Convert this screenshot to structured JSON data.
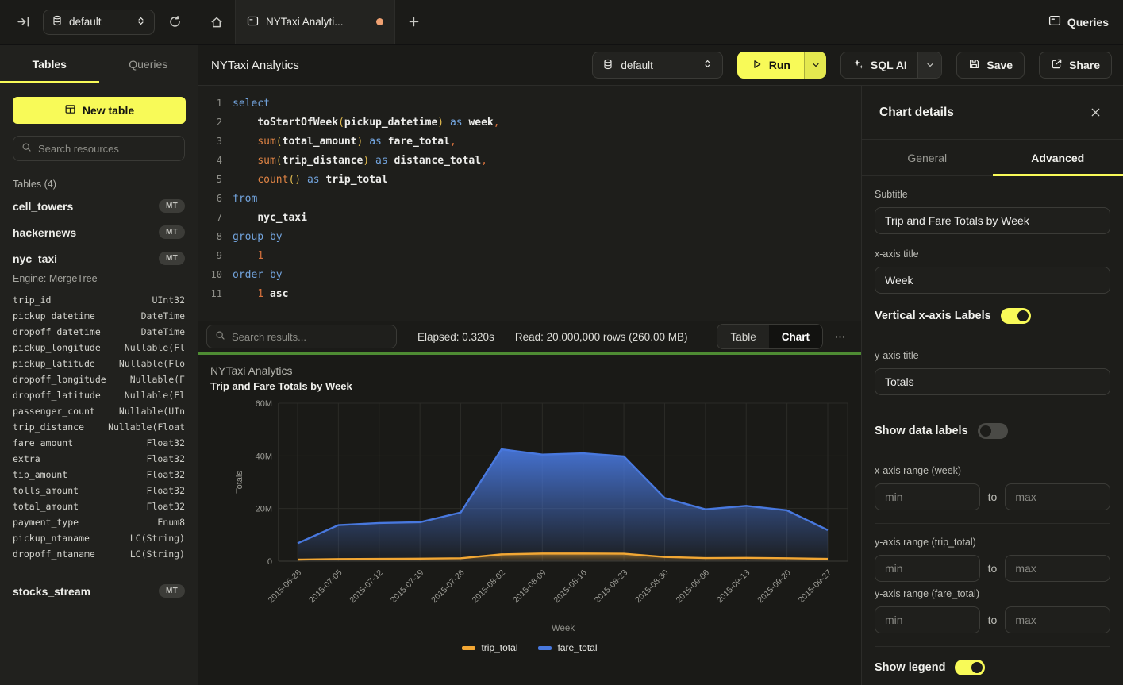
{
  "topbar": {
    "database_selector": "default",
    "tab_title": "NYTaxi Analyti...",
    "queries_label": "Queries"
  },
  "sidebar": {
    "tabs": [
      "Tables",
      "Queries"
    ],
    "active_tab": "Tables",
    "new_table_label": "New table",
    "search_placeholder": "Search resources",
    "section_label": "Tables (4)",
    "tables": [
      {
        "name": "cell_towers",
        "badge": "MT"
      },
      {
        "name": "hackernews",
        "badge": "MT"
      },
      {
        "name": "nyc_taxi",
        "badge": "MT",
        "engine": "Engine: MergeTree",
        "columns": [
          {
            "name": "trip_id",
            "type": "UInt32"
          },
          {
            "name": "pickup_datetime",
            "type": "DateTime"
          },
          {
            "name": "dropoff_datetime",
            "type": "DateTime"
          },
          {
            "name": "pickup_longitude",
            "type": "Nullable(Fl"
          },
          {
            "name": "pickup_latitude",
            "type": "Nullable(Flo"
          },
          {
            "name": "dropoff_longitude",
            "type": "Nullable(F"
          },
          {
            "name": "dropoff_latitude",
            "type": "Nullable(Fl"
          },
          {
            "name": "passenger_count",
            "type": "Nullable(UIn"
          },
          {
            "name": "trip_distance",
            "type": "Nullable(Float"
          },
          {
            "name": "fare_amount",
            "type": "Float32"
          },
          {
            "name": "extra",
            "type": "Float32"
          },
          {
            "name": "tip_amount",
            "type": "Float32"
          },
          {
            "name": "tolls_amount",
            "type": "Float32"
          },
          {
            "name": "total_amount",
            "type": "Float32"
          },
          {
            "name": "payment_type",
            "type": "Enum8"
          },
          {
            "name": "pickup_ntaname",
            "type": "LC(String)"
          },
          {
            "name": "dropoff_ntaname",
            "type": "LC(String)"
          }
        ]
      },
      {
        "name": "stocks_stream",
        "badge": "MT"
      }
    ]
  },
  "query_header": {
    "title": "NYTaxi Analytics",
    "database_selector": "default",
    "run_label": "Run",
    "sql_ai_label": "SQL AI",
    "save_label": "Save",
    "share_label": "Share"
  },
  "editor": {
    "lines": [
      {
        "n": "1",
        "tokens": [
          [
            "kw",
            "select"
          ]
        ]
      },
      {
        "n": "2",
        "tokens": [
          [
            "ws",
            "    "
          ],
          [
            "fnw",
            "toStartOfWeek"
          ],
          [
            "paren",
            "("
          ],
          [
            "id",
            "pickup_datetime"
          ],
          [
            "paren",
            ")"
          ],
          [
            "pl",
            " "
          ],
          [
            "kw",
            "as"
          ],
          [
            "pl",
            " "
          ],
          [
            "id",
            "week"
          ],
          [
            "comma",
            ","
          ]
        ]
      },
      {
        "n": "3",
        "tokens": [
          [
            "ws",
            "    "
          ],
          [
            "fn",
            "sum"
          ],
          [
            "paren",
            "("
          ],
          [
            "id",
            "total_amount"
          ],
          [
            "paren",
            ")"
          ],
          [
            "pl",
            " "
          ],
          [
            "kw",
            "as"
          ],
          [
            "pl",
            " "
          ],
          [
            "id",
            "fare_total"
          ],
          [
            "comma",
            ","
          ]
        ]
      },
      {
        "n": "4",
        "tokens": [
          [
            "ws",
            "    "
          ],
          [
            "fn",
            "sum"
          ],
          [
            "paren",
            "("
          ],
          [
            "id",
            "trip_distance"
          ],
          [
            "paren",
            ")"
          ],
          [
            "pl",
            " "
          ],
          [
            "kw",
            "as"
          ],
          [
            "pl",
            " "
          ],
          [
            "id",
            "distance_total"
          ],
          [
            "comma",
            ","
          ]
        ]
      },
      {
        "n": "5",
        "tokens": [
          [
            "ws",
            "    "
          ],
          [
            "fn",
            "count"
          ],
          [
            "paren",
            "()"
          ],
          [
            "pl",
            " "
          ],
          [
            "kw",
            "as"
          ],
          [
            "pl",
            " "
          ],
          [
            "id",
            "trip_total"
          ]
        ]
      },
      {
        "n": "6",
        "tokens": [
          [
            "kw",
            "from"
          ]
        ]
      },
      {
        "n": "7",
        "tokens": [
          [
            "ws",
            "    "
          ],
          [
            "id",
            "nyc_taxi"
          ]
        ]
      },
      {
        "n": "8",
        "tokens": [
          [
            "kw",
            "group by"
          ]
        ]
      },
      {
        "n": "9",
        "tokens": [
          [
            "ws",
            "    "
          ],
          [
            "num",
            "1"
          ]
        ]
      },
      {
        "n": "10",
        "tokens": [
          [
            "kw",
            "order by"
          ]
        ]
      },
      {
        "n": "11",
        "tokens": [
          [
            "ws",
            "    "
          ],
          [
            "num",
            "1"
          ],
          [
            "pl",
            " "
          ],
          [
            "id",
            "asc"
          ]
        ]
      }
    ]
  },
  "results_bar": {
    "search_placeholder": "Search results...",
    "elapsed": "Elapsed: 0.320s",
    "read": "Read: 20,000,000 rows (260.00 MB)",
    "view_toggle": [
      "Table",
      "Chart"
    ],
    "active_view": "Chart"
  },
  "chart_data": {
    "type": "area",
    "title": "NYTaxi Analytics",
    "subtitle": "Trip and Fare Totals by Week",
    "xlabel": "Week",
    "ylabel": "Totals",
    "ylim": [
      0,
      60000000
    ],
    "grid": true,
    "legend_position": "bottom",
    "x": [
      "2015-06-28",
      "2015-07-05",
      "2015-07-12",
      "2015-07-19",
      "2015-07-26",
      "2015-08-02",
      "2015-08-09",
      "2015-08-16",
      "2015-08-23",
      "2015-08-30",
      "2015-09-06",
      "2015-09-13",
      "2015-09-20",
      "2015-09-27"
    ],
    "y_ticks": [
      {
        "label": "0",
        "value": 0
      },
      {
        "label": "20M",
        "value": 20000000
      },
      {
        "label": "40M",
        "value": 40000000
      },
      {
        "label": "60M",
        "value": 60000000
      }
    ],
    "series": [
      {
        "name": "trip_total",
        "color": "#F2A734",
        "values": [
          600000,
          800000,
          900000,
          950000,
          1100000,
          2600000,
          2900000,
          2900000,
          2850000,
          1600000,
          1200000,
          1250000,
          1100000,
          900000
        ]
      },
      {
        "name": "fare_total",
        "color": "#4878DE",
        "values": [
          6800000,
          13700000,
          14500000,
          14800000,
          18500000,
          42500000,
          40500000,
          41000000,
          39800000,
          24000000,
          19700000,
          21000000,
          19300000,
          11800000
        ]
      }
    ]
  },
  "chart_panel": {
    "title": "Chart details",
    "tabs": [
      "General",
      "Advanced"
    ],
    "active_tab": "Advanced",
    "fields": {
      "subtitle": {
        "label": "Subtitle",
        "value": "Trip and Fare Totals by Week"
      },
      "x_axis_title": {
        "label": "x-axis title",
        "value": "Week"
      },
      "vertical_x_labels": {
        "label": "Vertical x-axis Labels",
        "on": true
      },
      "y_axis_title": {
        "label": "y-axis title",
        "value": "Totals"
      },
      "show_data_labels": {
        "label": "Show data labels",
        "on": false
      },
      "x_axis_range": {
        "label": "x-axis range (week)",
        "min_placeholder": "min",
        "max_placeholder": "max",
        "to": "to"
      },
      "y_axis_range_trip": {
        "label": "y-axis range (trip_total)",
        "min_placeholder": "min",
        "max_placeholder": "max",
        "to": "to"
      },
      "y_axis_range_fare": {
        "label": "y-axis range (fare_total)",
        "min_placeholder": "min",
        "max_placeholder": "max",
        "to": "to"
      },
      "show_legend": {
        "label": "Show legend",
        "on": true
      }
    }
  },
  "colors": {
    "accent_yellow": "#F8FA58",
    "green_divider": "#4E8C33",
    "series_blue": "#4878DE",
    "series_orange": "#F2A734",
    "unsaved_dot": "#EFA172"
  }
}
